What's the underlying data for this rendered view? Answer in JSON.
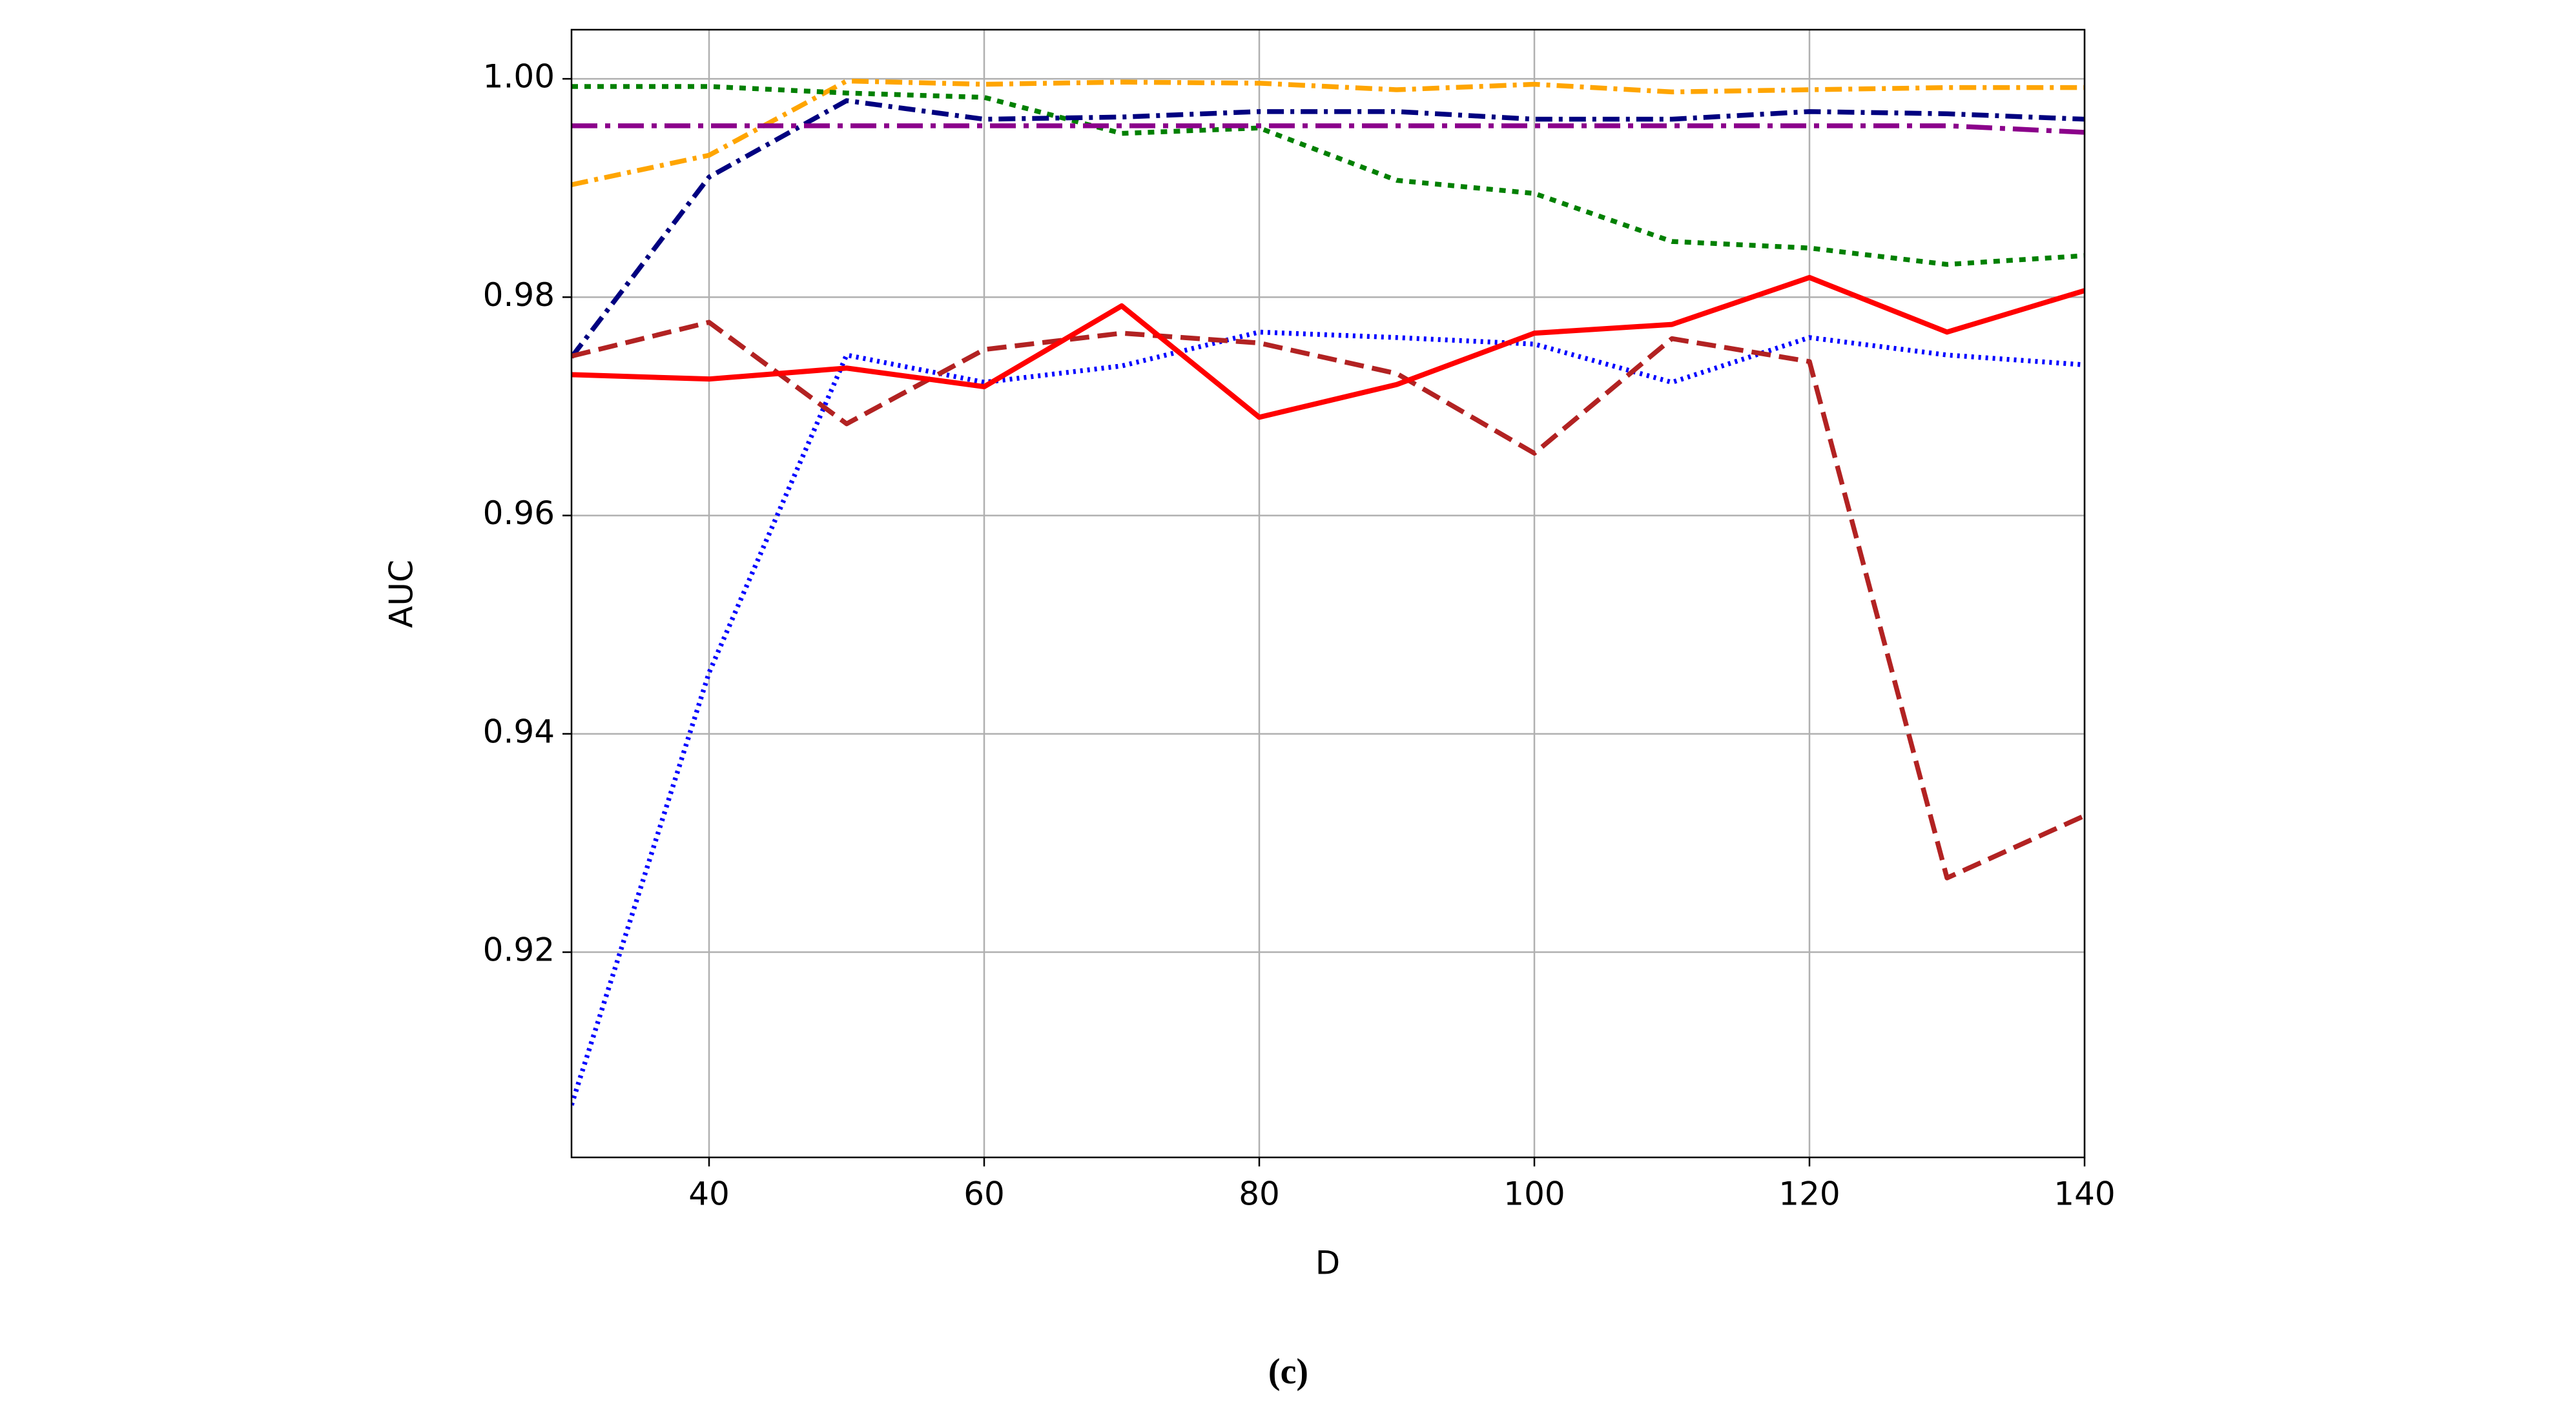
{
  "chart_data": {
    "type": "line",
    "xlabel": "D",
    "ylabel": "AUC",
    "caption": "(c)",
    "x": [
      30,
      40,
      50,
      60,
      70,
      80,
      90,
      100,
      110,
      120,
      130,
      140
    ],
    "xlim": [
      30,
      140
    ],
    "xticks": [
      40,
      60,
      80,
      100,
      120,
      140
    ],
    "ylim": [
      0.9012,
      1.0045
    ],
    "yticks": [
      0.92,
      0.94,
      0.96,
      0.98,
      {
        "value": 1,
        "label": "1.00"
      }
    ],
    "grid": true,
    "series": [
      {
        "color": "#ffa500",
        "linestyle": "dashdot",
        "values": [
          0.9903,
          0.993,
          0.9998,
          0.9995,
          0.9997,
          0.9996,
          0.999,
          0.9995,
          0.9988,
          0.999,
          0.9992,
          0.9992
        ]
      },
      {
        "color": "#008000",
        "linestyle": "dotted",
        "values": [
          0.9993,
          0.9993,
          0.9987,
          0.9983,
          0.995,
          0.9955,
          0.9907,
          0.9895,
          0.9851,
          0.9845,
          0.983,
          0.9838
        ]
      },
      {
        "color": "#000080",
        "linestyle": "dashdot",
        "values": [
          0.9745,
          0.991,
          0.998,
          0.9963,
          0.9965,
          0.997,
          0.997,
          0.9963,
          0.9963,
          0.997,
          0.9968,
          0.9963
        ]
      },
      {
        "color": "#8b008b",
        "linestyle": "longdashdot",
        "values": [
          0.9957,
          0.9957,
          0.9957,
          0.9957,
          0.9957,
          0.9957,
          0.9957,
          0.9957,
          0.9957,
          0.9957,
          0.9957,
          0.9951
        ]
      },
      {
        "color": "#0000ff",
        "linestyle": "finedot",
        "values": [
          0.906,
          0.9456,
          0.9747,
          0.9722,
          0.9737,
          0.9768,
          0.9763,
          0.9757,
          0.9722,
          0.9763,
          0.9747,
          0.9738
        ]
      },
      {
        "color": "#b22222",
        "linestyle": "dashed",
        "values": [
          0.9746,
          0.9777,
          0.9684,
          0.9752,
          0.9767,
          0.9758,
          0.973,
          0.9657,
          0.9762,
          0.9741,
          0.9268,
          0.9325
        ]
      },
      {
        "color": "#ff0000",
        "linestyle": "solid",
        "values": [
          0.9729,
          0.9725,
          0.9735,
          0.9718,
          0.9792,
          0.969,
          0.972,
          0.9767,
          0.9775,
          0.9818,
          0.9768,
          0.9806
        ]
      }
    ]
  }
}
